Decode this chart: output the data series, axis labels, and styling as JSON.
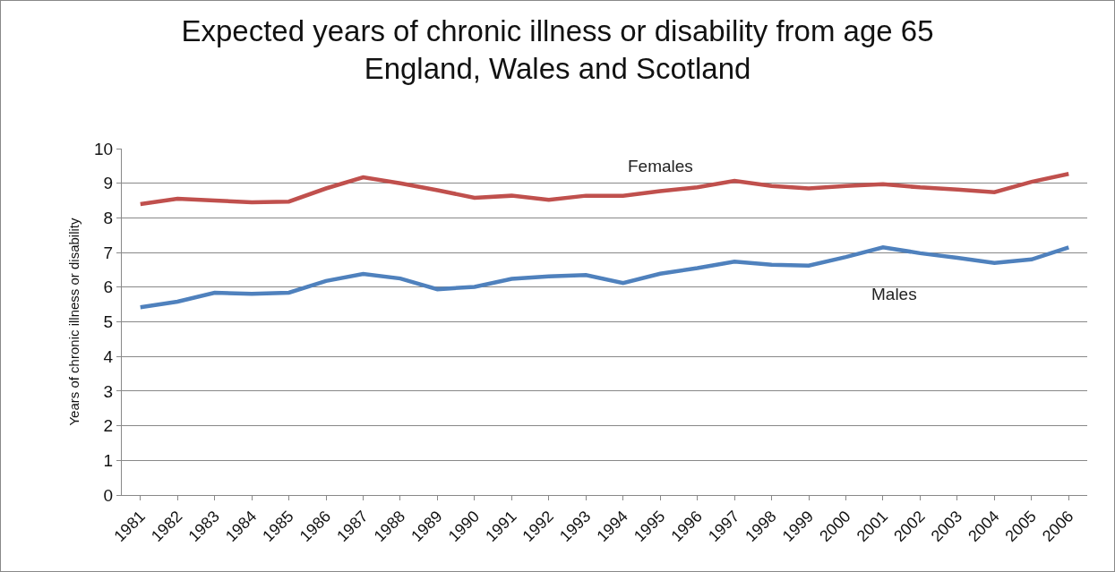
{
  "chart_data": {
    "type": "line",
    "title": "Expected years of chronic illness or disability from age 65",
    "subtitle": "England, Wales and Scotland",
    "ylabel": "Years of chronic illness or disability",
    "categories": [
      "1981",
      "1982",
      "1983",
      "1984",
      "1985",
      "1986",
      "1987",
      "1988",
      "1989",
      "1990",
      "1991",
      "1992",
      "1993",
      "1994",
      "1995",
      "1996",
      "1997",
      "1998",
      "1999",
      "2000",
      "2001",
      "2002",
      "2003",
      "2004",
      "2005",
      "2006"
    ],
    "series": [
      {
        "name": "Females",
        "color": "#c0504d",
        "values": [
          8.4,
          8.55,
          8.5,
          8.45,
          8.47,
          8.85,
          9.17,
          9.0,
          8.8,
          8.58,
          8.64,
          8.52,
          8.64,
          8.64,
          8.77,
          8.88,
          9.07,
          8.92,
          8.85,
          8.92,
          8.97,
          8.88,
          8.82,
          8.74,
          9.04,
          9.27
        ]
      },
      {
        "name": "Males",
        "color": "#4f81bd",
        "values": [
          5.42,
          5.58,
          5.84,
          5.81,
          5.84,
          6.18,
          6.38,
          6.25,
          5.94,
          6.01,
          6.24,
          6.31,
          6.35,
          6.12,
          6.39,
          6.55,
          6.74,
          6.65,
          6.62,
          6.87,
          7.15,
          6.98,
          6.85,
          6.7,
          6.8,
          7.15
        ]
      }
    ],
    "ylim": [
      0,
      10
    ],
    "yticks": [
      0,
      1,
      2,
      3,
      4,
      5,
      6,
      7,
      8,
      9,
      10
    ],
    "grid": "y",
    "legend": false,
    "marker": "none",
    "line_style": "solid"
  }
}
